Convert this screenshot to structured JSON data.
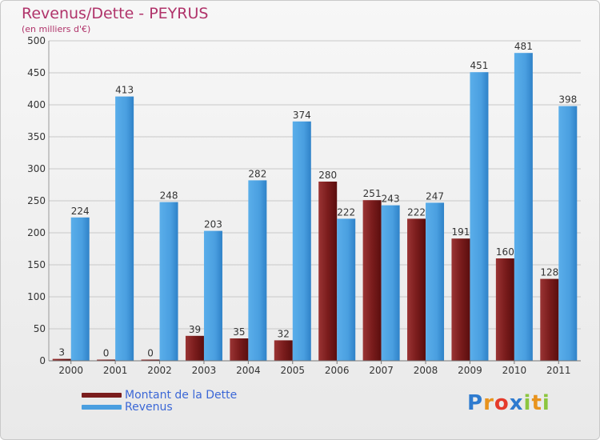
{
  "header": {
    "title": "Revenus/Dette - PEYRUS",
    "subtitle": "(en milliers d'€)"
  },
  "legend": {
    "dette_label": "Montant de la Dette",
    "revenus_label": "Revenus"
  },
  "logo": {
    "text": "Proxiti",
    "letters": [
      "P",
      "r",
      "o",
      "x",
      "i",
      "t",
      "i"
    ],
    "letter_colors": [
      "#2e7bcf",
      "#e8931d",
      "#e53b2b",
      "#2e7bcf",
      "#8cc63f",
      "#e8931d",
      "#8cc63f"
    ]
  },
  "colors": {
    "dette": "#7a1c1c",
    "revenus": "#4a9fe0",
    "grid": "#c8c8c8",
    "axis_text": "#333333"
  },
  "chart_data": {
    "type": "bar",
    "title": "Revenus/Dette - PEYRUS",
    "ylabel": "(en milliers d'€)",
    "xlabel": "",
    "categories": [
      "2000",
      "2001",
      "2002",
      "2003",
      "2004",
      "2005",
      "2006",
      "2007",
      "2008",
      "2009",
      "2010",
      "2011"
    ],
    "series": [
      {
        "name": "Montant de la Dette",
        "values": [
          3,
          0,
          0,
          39,
          35,
          32,
          280,
          251,
          222,
          191,
          160,
          128
        ]
      },
      {
        "name": "Revenus",
        "values": [
          224,
          413,
          248,
          203,
          282,
          374,
          222,
          243,
          247,
          451,
          481,
          398
        ]
      }
    ],
    "ylim": [
      0,
      500
    ],
    "yticks": [
      0,
      50,
      100,
      150,
      200,
      250,
      300,
      350,
      400,
      450,
      500
    ],
    "grid": true,
    "legend_position": "bottom-left"
  }
}
